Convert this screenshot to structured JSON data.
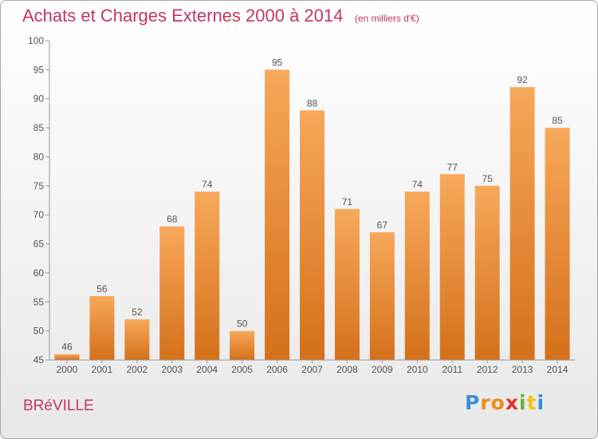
{
  "chart_data": {
    "type": "bar",
    "title": "Achats et Charges Externes 2000 à 2014",
    "subtitle": "(en milliers d'€)",
    "categories": [
      "2000",
      "2001",
      "2002",
      "2003",
      "2004",
      "2005",
      "2006",
      "2007",
      "2008",
      "2009",
      "2010",
      "2011",
      "2012",
      "2013",
      "2014"
    ],
    "values": [
      46,
      56,
      52,
      68,
      74,
      50,
      95,
      88,
      71,
      67,
      74,
      77,
      75,
      92,
      85
    ],
    "ylim": [
      45,
      100
    ],
    "yticks": [
      45,
      50,
      55,
      60,
      65,
      70,
      75,
      80,
      85,
      90,
      95,
      100
    ],
    "grid": false,
    "xlabel": "",
    "ylabel": "",
    "bar_color": "#f0902e"
  },
  "footer": {
    "town": "BRéVILLE"
  },
  "logo": {
    "letters": [
      "P",
      "r",
      "o",
      "x",
      "i",
      "t",
      "i"
    ],
    "colors": [
      "#3a8fd6",
      "#f08a1c",
      "#f08a1c",
      "#e8332a",
      "#64b32e",
      "#f2c21b",
      "#3a8fd6"
    ]
  }
}
